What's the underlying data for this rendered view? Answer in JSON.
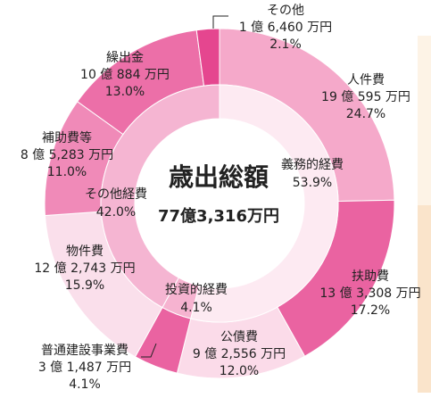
{
  "chart_data": {
    "type": "donut",
    "title": "歳出総額",
    "total": "77億3,316万円",
    "rings": [
      {
        "categories": [
          "人件費",
          "扶助費",
          "公債費",
          "普通建設事業費",
          "物件費",
          "補助費等",
          "繰出金",
          "その他"
        ],
        "values": [
          24.7,
          17.2,
          12.0,
          4.1,
          15.9,
          11.0,
          13.0,
          2.1
        ],
        "value_labels": [
          "24.7%",
          "17.2%",
          "12.0%",
          "4.1%",
          "15.9%",
          "11.0%",
          "13.0%",
          "2.1%"
        ],
        "amounts": [
          "19 億 595 万円",
          "13 億 3,308 万円",
          "9 億 2,556 万円",
          "3 億 1,487 万円",
          "12 億 2,743 万円",
          "8 億 5,283 万円",
          "10 億 884 万円",
          "1 億 6,460 万円"
        ],
        "colors": [
          "#f5a9ca",
          "#ea63a1",
          "#fbdbe9",
          "#ea63a1",
          "#fadfeb",
          "#f08ab8",
          "#ec6fa8",
          "#e5468f"
        ]
      },
      {
        "categories": [
          "義務的経費",
          "投資的経費",
          "その他経費"
        ],
        "values": [
          53.9,
          4.1,
          42.0
        ],
        "value_labels": [
          "53.9%",
          "4.1%",
          "42.0%"
        ],
        "colors": [
          "#fdeaf2",
          "#f6b3d0",
          "#f5b5d2"
        ]
      }
    ]
  }
}
